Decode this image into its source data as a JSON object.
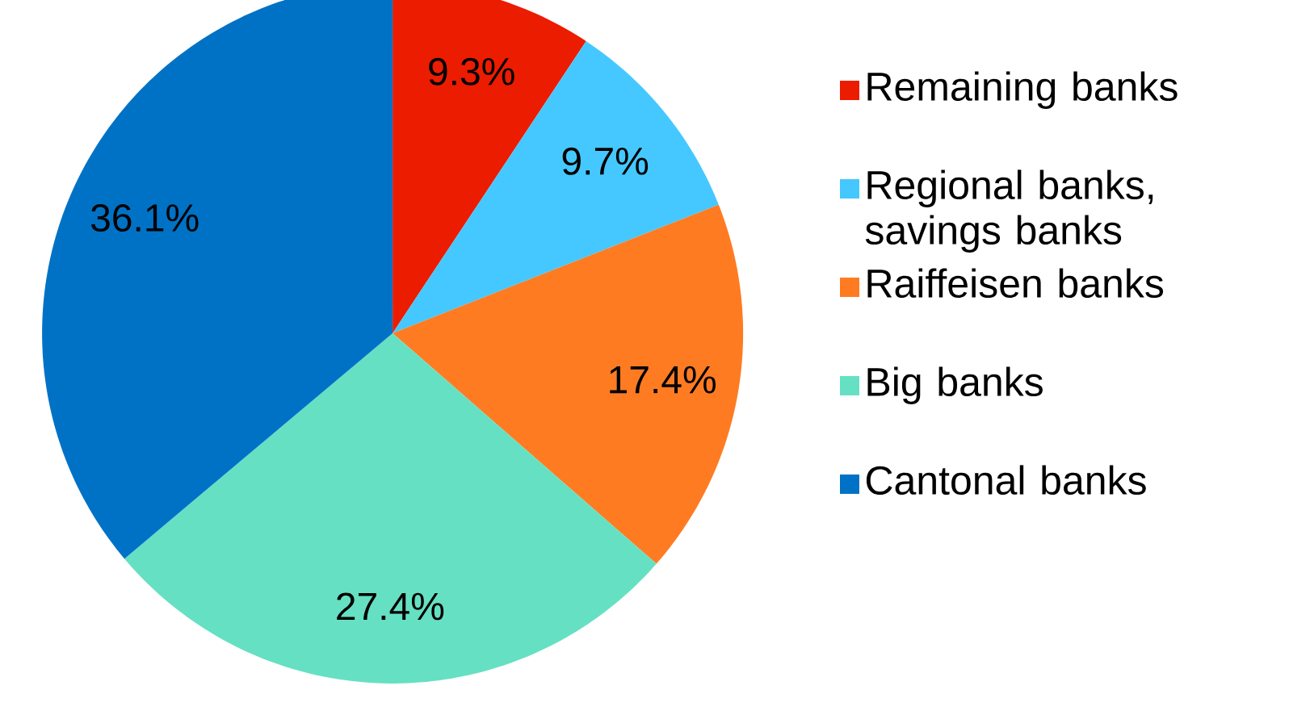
{
  "chart_data": {
    "type": "pie",
    "categories": [
      "Remaining banks",
      "Regional banks, savings banks",
      "Raiffeisen banks",
      "Big banks",
      "Cantonal banks"
    ],
    "values": [
      9.3,
      9.7,
      17.4,
      27.4,
      36.1
    ],
    "colors": [
      "#ec1c00",
      "#45c8ff",
      "#ff7b22",
      "#66e0c2",
      "#0072c6"
    ],
    "value_labels": [
      "9.3%",
      "9.7%",
      "17.4%",
      "27.4%",
      "36.1%"
    ],
    "legend": "right"
  }
}
